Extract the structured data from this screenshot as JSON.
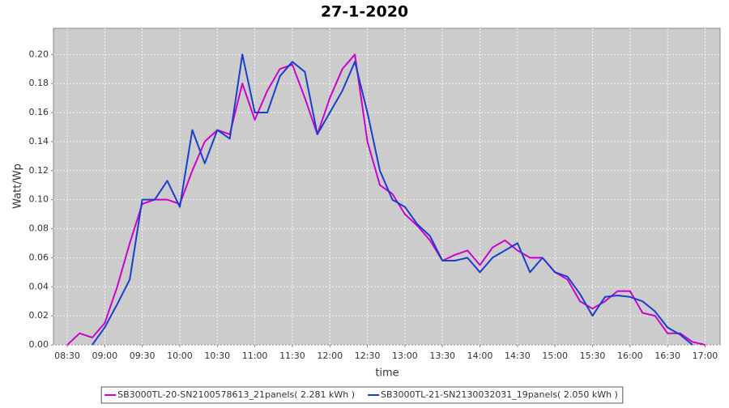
{
  "chart_data": {
    "type": "line",
    "title": "27-1-2020",
    "x_label": "time",
    "y_label": "Watt/Wp",
    "x": [
      "08:30",
      "08:40",
      "08:50",
      "09:00",
      "09:10",
      "09:20",
      "09:30",
      "09:40",
      "09:50",
      "10:00",
      "10:10",
      "10:20",
      "10:30",
      "10:40",
      "10:50",
      "11:00",
      "11:10",
      "11:20",
      "11:30",
      "11:40",
      "11:50",
      "12:00",
      "12:10",
      "12:20",
      "12:30",
      "12:40",
      "12:50",
      "13:00",
      "13:10",
      "13:20",
      "13:30",
      "13:40",
      "13:50",
      "14:00",
      "14:10",
      "14:20",
      "14:30",
      "14:40",
      "14:50",
      "15:00",
      "15:10",
      "15:20",
      "15:30",
      "15:40",
      "15:50",
      "16:00",
      "16:10",
      "16:20",
      "16:30",
      "16:40",
      "16:50",
      "17:00"
    ],
    "series": [
      {
        "name": "SB3000TL-20-SN2100578613_21panels( 2.281 kWh )",
        "color": "#cc00cc",
        "values": [
          0,
          0.008,
          0.005,
          0.015,
          0.04,
          0.07,
          0.097,
          0.1,
          0.1,
          0.097,
          0.12,
          0.14,
          0.148,
          0.145,
          0.18,
          0.155,
          0.175,
          0.19,
          0.193,
          0.17,
          0.145,
          0.17,
          0.19,
          0.2,
          0.14,
          0.11,
          0.104,
          0.09,
          0.082,
          0.072,
          0.058,
          0.062,
          0.065,
          0.055,
          0.067,
          0.072,
          0.065,
          0.06,
          0.06,
          0.05,
          0.045,
          0.03,
          0.025,
          0.03,
          0.037,
          0.037,
          0.022,
          0.02,
          0.008,
          0.008,
          0.002,
          0
        ]
      },
      {
        "name": "SB3000TL-21-SN2130032031_19panels( 2.050 kWh )",
        "color": "#1a3fcc",
        "values": [
          null,
          null,
          0,
          0.012,
          0.028,
          0.045,
          0.1,
          0.1,
          0.113,
          0.095,
          0.148,
          0.125,
          0.148,
          0.142,
          0.2,
          0.16,
          0.16,
          0.185,
          0.195,
          0.188,
          0.145,
          0.16,
          0.175,
          0.195,
          0.16,
          0.12,
          0.1,
          0.095,
          0.083,
          0.075,
          0.058,
          0.058,
          0.06,
          0.05,
          0.06,
          0.065,
          0.07,
          0.05,
          0.06,
          0.05,
          0.047,
          0.035,
          0.02,
          0.033,
          0.034,
          0.033,
          0.03,
          0.023,
          0.012,
          0.007,
          0,
          null
        ]
      }
    ],
    "xlim": [
      "08:19",
      "17:12"
    ],
    "xticks": [
      "08:30",
      "09:00",
      "09:30",
      "10:00",
      "10:30",
      "11:00",
      "11:30",
      "12:00",
      "12:30",
      "13:00",
      "13:30",
      "14:00",
      "14:30",
      "15:00",
      "15:30",
      "16:00",
      "16:30",
      "17:00"
    ],
    "ylim": [
      0,
      0.218
    ],
    "yticks": [
      {
        "value": 0,
        "label": "0.00"
      },
      {
        "value": 0.02,
        "label": "0.02"
      },
      {
        "value": 0.04,
        "label": "0.04"
      },
      {
        "value": 0.06,
        "label": "0.06"
      },
      {
        "value": 0.08,
        "label": "0.08"
      },
      {
        "value": 0.1,
        "label": "0.10"
      },
      {
        "value": 0.12,
        "label": "0.12"
      },
      {
        "value": 0.14,
        "label": "0.14"
      },
      {
        "value": 0.16,
        "label": "0.16"
      },
      {
        "value": 0.18,
        "label": "0.18"
      },
      {
        "value": 0.2,
        "label": "0.20"
      }
    ],
    "grid": true,
    "legend": "bottom"
  }
}
